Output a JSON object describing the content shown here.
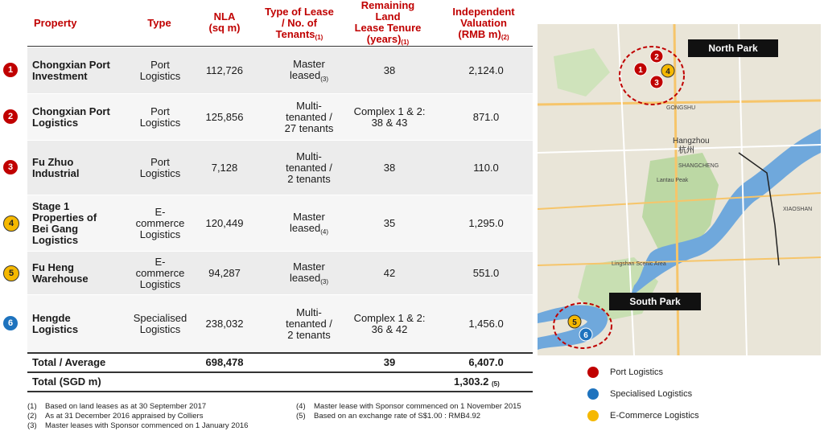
{
  "headers": {
    "property": "Property",
    "type": "Type",
    "nla": "NLA",
    "nla_unit": "(sq m)",
    "lease_l1": "Type of Lease",
    "lease_l2": "/ No. of",
    "lease_l3": "Tenants",
    "lease_sup": "(1)",
    "tenure_l1": "Remaining",
    "tenure_l2": "Land",
    "tenure_l3": "Lease Tenure",
    "tenure_l4": "(years)",
    "tenure_sup": "(1)",
    "val_l1": "Independent",
    "val_l2": "Valuation",
    "val_l3": "(RMB m)",
    "val_sup": "(2)"
  },
  "rows": [
    {
      "num": "1",
      "color": "#c00000",
      "property": [
        "Chongxian Port",
        "Investment"
      ],
      "type": [
        "Port",
        "Logistics"
      ],
      "nla": "112,726",
      "lease": [
        "Master",
        "leased"
      ],
      "lease_sup": "(3)",
      "tenure": [
        "38"
      ],
      "valuation": "2,124.0"
    },
    {
      "num": "2",
      "color": "#c00000",
      "property": [
        "Chongxian Port",
        "Logistics"
      ],
      "type": [
        "Port",
        "Logistics"
      ],
      "nla": "125,856",
      "lease": [
        "Multi-",
        "tenanted /",
        "27 tenants"
      ],
      "lease_sup": "",
      "tenure": [
        "Complex 1 & 2:",
        "38 & 43"
      ],
      "valuation": "871.0"
    },
    {
      "num": "3",
      "color": "#c00000",
      "property": [
        "Fu Zhuo",
        "Industrial"
      ],
      "type": [
        "Port",
        "Logistics"
      ],
      "nla": "7,128",
      "lease": [
        "Multi-",
        "tenanted /",
        "2 tenants"
      ],
      "lease_sup": "",
      "tenure": [
        "38"
      ],
      "valuation": "110.0"
    },
    {
      "num": "4",
      "color": "#f5b800",
      "property": [
        "Stage 1",
        "Properties of",
        "Bei Gang",
        "Logistics"
      ],
      "type": [
        "E-",
        "commerce",
        "Logistics"
      ],
      "nla": "120,449",
      "lease": [
        "Master",
        "leased"
      ],
      "lease_sup": "(4)",
      "tenure": [
        "35"
      ],
      "valuation": "1,295.0"
    },
    {
      "num": "5",
      "color": "#f5b800",
      "property": [
        "Fu Heng",
        "Warehouse"
      ],
      "type": [
        "E-",
        "commerce",
        "Logistics"
      ],
      "nla": "94,287",
      "lease": [
        "Master",
        "leased"
      ],
      "lease_sup": "(3)",
      "tenure": [
        "42"
      ],
      "valuation": "551.0"
    },
    {
      "num": "6",
      "color": "#1e73be",
      "property": [
        "Hengde",
        "Logistics"
      ],
      "type": [
        "Specialised",
        "Logistics"
      ],
      "nla": "238,032",
      "lease": [
        "Multi-",
        "tenanted /",
        "2 tenants"
      ],
      "lease_sup": "",
      "tenure": [
        "Complex 1 & 2:",
        "36 & 42"
      ],
      "valuation": "1,456.0"
    }
  ],
  "total": {
    "label": "Total / Average",
    "nla": "698,478",
    "tenure": "39",
    "valuation": "6,407.0"
  },
  "total_sgd": {
    "label": "Total (SGD m)",
    "valuation": "1,303.2",
    "sup": "(5)"
  },
  "footnotes": [
    {
      "n": "(1)",
      "text": "Based on land leases as at 30 September 2017"
    },
    {
      "n": "(2)",
      "text": "As at 31 December 2016 appraised by Colliers"
    },
    {
      "n": "(3)",
      "text": "Master leases with Sponsor commenced on 1 January 2016"
    },
    {
      "n": "(4)",
      "text": "Master lease with Sponsor commenced on 1 November 2015"
    },
    {
      "n": "(5)",
      "text": "Based on an exchange rate of S$1.00 : RMB4.92"
    }
  ],
  "map": {
    "north_label": "North Park",
    "south_label": "South Park",
    "city_en": "Hangzhou",
    "city_cn": "杭州",
    "places": [
      "GONGSHU",
      "SHANGCHENG",
      "XIAOSHAN",
      "Lantau Peak",
      "Lingshan Scenic Area"
    ]
  },
  "legend": [
    {
      "label": "Port Logistics",
      "color": "#c00000"
    },
    {
      "label": "Specialised Logistics",
      "color": "#1e73be"
    },
    {
      "label": "E-Commerce Logistics",
      "color": "#f5b800"
    }
  ]
}
